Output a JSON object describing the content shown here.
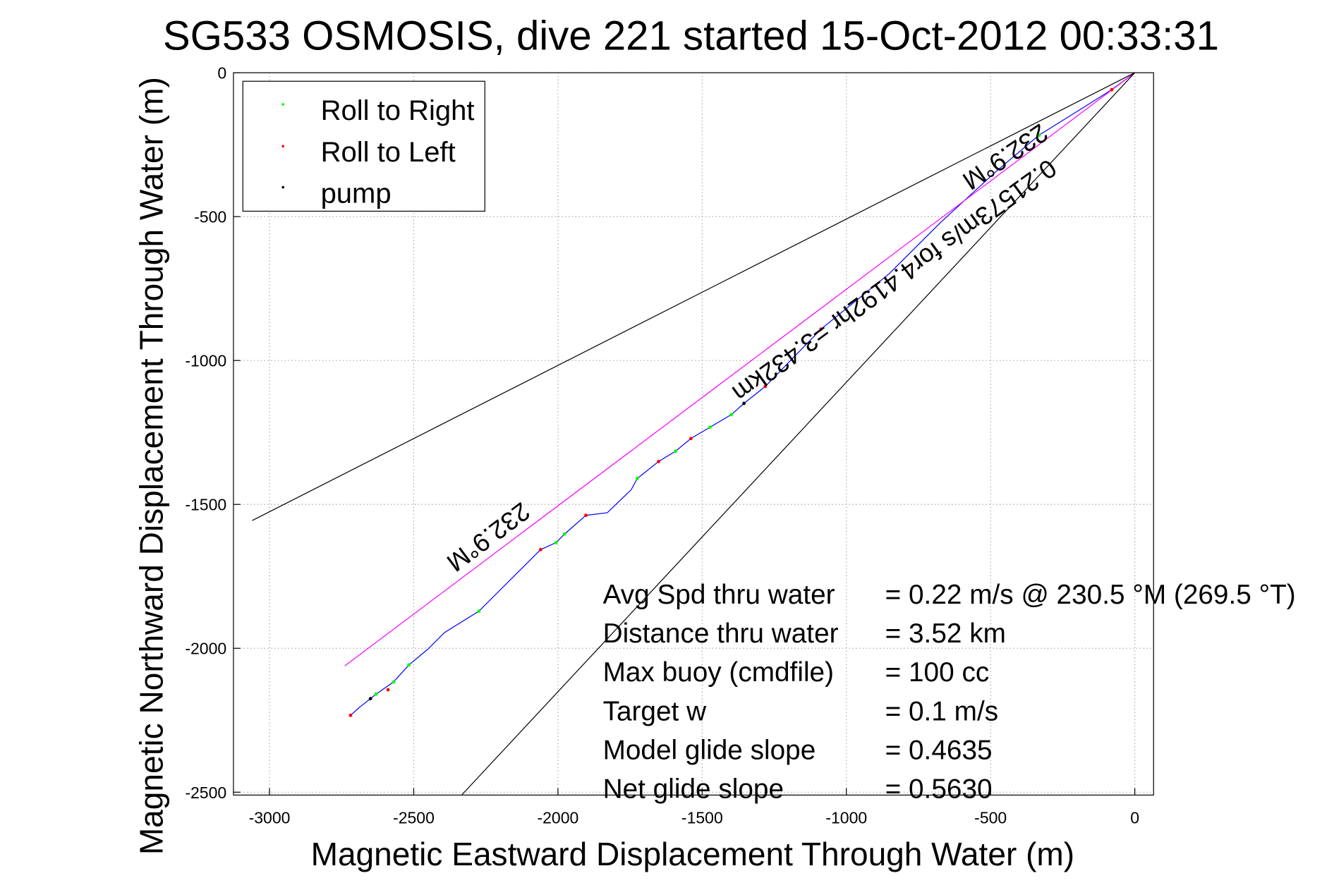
{
  "chart_data": {
    "type": "line",
    "title": "SG533 OSMOSIS, dive 221 started 15-Oct-2012 00:33:31",
    "xlabel": "Magnetic Eastward Displacement Through Water (m)",
    "ylabel": "Magnetic Northward Displacement Through Water (m)",
    "xlim": [
      -3125,
      65
    ],
    "ylim": [
      -2510,
      0
    ],
    "grid": true,
    "xticks": [
      -3000,
      -2500,
      -2000,
      -1500,
      -1000,
      -500,
      0
    ],
    "yticks": [
      0,
      -500,
      -1000,
      -1500,
      -2000,
      -2500
    ],
    "legend": {
      "placement": "top-left",
      "entries": [
        {
          "label": "Roll to Right",
          "color": "#00ff00"
        },
        {
          "label": "Roll to Left",
          "color": "#ff0000"
        },
        {
          "label": "pump",
          "color": "#000000"
        }
      ]
    },
    "series": [
      {
        "name": "track",
        "color": "#0000ff",
        "x": [
          0,
          -80,
          -199,
          -332,
          -480,
          -673,
          -851,
          -1088,
          -1281,
          -1355,
          -1399,
          -1473,
          -1539,
          -1592,
          -1651,
          -1725,
          -1746,
          -1829,
          -1903,
          -1977,
          -2007,
          -2060,
          -2155,
          -2274,
          -2393,
          -2452,
          -2517,
          -2570,
          -2630,
          -2689,
          -2719
        ],
        "y": [
          0,
          -59,
          -134,
          -217,
          -342,
          -520,
          -698,
          -891,
          -1090,
          -1149,
          -1188,
          -1232,
          -1271,
          -1315,
          -1351,
          -1410,
          -1449,
          -1529,
          -1538,
          -1603,
          -1633,
          -1657,
          -1752,
          -1871,
          -1945,
          -2004,
          -2058,
          -2117,
          -2159,
          -2206,
          -2233
        ]
      },
      {
        "name": "heading line",
        "color": "#ff00ff",
        "x": [
          0,
          -2739
        ],
        "y": [
          0,
          -2061
        ]
      },
      {
        "name": "cone upper",
        "color": "#000000",
        "x": [
          0,
          -3060
        ],
        "y": [
          0,
          -1556
        ]
      },
      {
        "name": "cone lower",
        "color": "#000000",
        "x": [
          0,
          -2333
        ],
        "y": [
          0,
          -2509
        ]
      }
    ],
    "markers": {
      "roll_right": {
        "x": [
          -332,
          -1399,
          -1473,
          -1592,
          -1725,
          -1977,
          -2007,
          -2274,
          -2517,
          -2570,
          -2630
        ],
        "y": [
          -217,
          -1188,
          -1232,
          -1315,
          -1410,
          -1603,
          -1633,
          -1871,
          -2058,
          -2117,
          -2159
        ]
      },
      "roll_left": {
        "x": [
          -80,
          -1281,
          -1539,
          -1651,
          -1903,
          -2060,
          -2589,
          -2719,
          -1088
        ],
        "y": [
          -59,
          -1090,
          -1271,
          -1351,
          -1538,
          -1657,
          -2144,
          -2233,
          -891
        ]
      },
      "pump": {
        "x": [
          -1355,
          -2650
        ],
        "y": [
          -1149,
          -2175
        ]
      }
    },
    "annotations": {
      "heading_lower": "232.9°M",
      "heading_upper": "232.9°M",
      "speed": "0.21573m/s for4.4192hr =3.432km"
    },
    "stats": [
      {
        "label": "Avg Spd thru water",
        "value": "=  0.22 m/s @ 230.5 °M (269.5 °T)"
      },
      {
        "label": "Distance thru water",
        "value": "=  3.52 km"
      },
      {
        "label": "Max buoy (cmdfile)",
        "value": "= 100 cc"
      },
      {
        "label": "Target w",
        "value": "= 0.1 m/s"
      },
      {
        "label": "Model glide slope",
        "value": "= 0.4635"
      },
      {
        "label": "Net glide slope",
        "value": "= 0.5630"
      }
    ]
  }
}
